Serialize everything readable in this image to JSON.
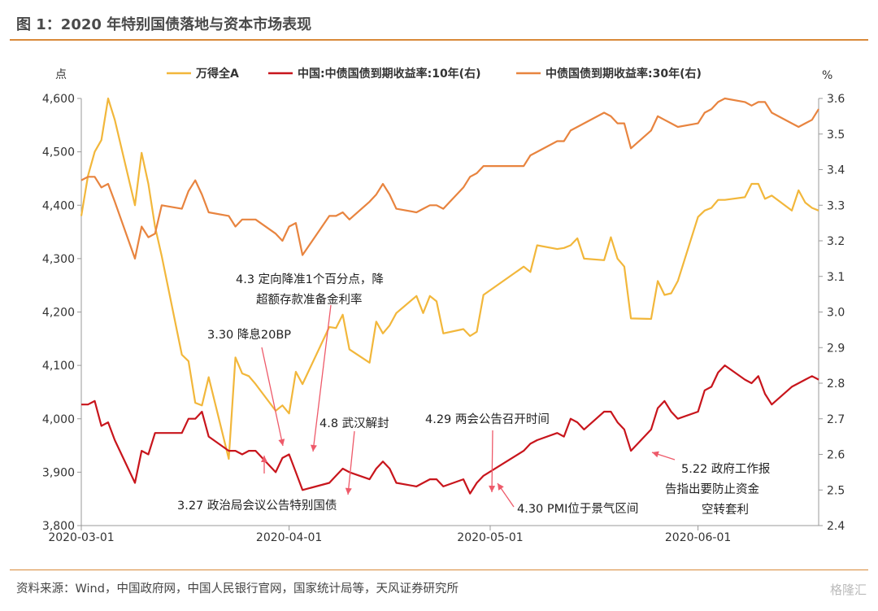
{
  "header": {
    "title": "图 1：2020 年特别国债落地与资本市场表现"
  },
  "footer": {
    "source": "资料来源：Wind，中国政府网，中国人民银行官网，国家统计局等，天风证券研究所",
    "watermark": "格隆汇"
  },
  "colors": {
    "wind": "#f2b73b",
    "bond10": "#c8151c",
    "bond30": "#e8843f",
    "annotation": "#ee5a6a",
    "rule": "#d98a3a"
  },
  "chart_data": {
    "type": "line",
    "ylabel_left": "点",
    "ylabel_right": "%",
    "ylim_left": [
      3800,
      4600
    ],
    "ylim_right": [
      2.4,
      3.6
    ],
    "yticks_left": [
      "3,800",
      "3,900",
      "4,000",
      "4,100",
      "4,200",
      "4,300",
      "4,400",
      "4,500",
      "4,600"
    ],
    "yticks_right": [
      "2.4",
      "2.5",
      "2.6",
      "2.7",
      "2.8",
      "2.9",
      "3.0",
      "3.1",
      "3.2",
      "3.3",
      "3.4",
      "3.5",
      "3.6"
    ],
    "xticks": [
      "2020-03-01",
      "2020-04-01",
      "2020-05-01",
      "2020-06-01"
    ],
    "series": [
      {
        "name": "万得全A",
        "axis": "left",
        "x": [
          "2020-03-01",
          "2020-03-02",
          "2020-03-03",
          "2020-03-04",
          "2020-03-05",
          "2020-03-06",
          "2020-03-09",
          "2020-03-10",
          "2020-03-11",
          "2020-03-12",
          "2020-03-13",
          "2020-03-16",
          "2020-03-17",
          "2020-03-18",
          "2020-03-19",
          "2020-03-20",
          "2020-03-23",
          "2020-03-24",
          "2020-03-25",
          "2020-03-26",
          "2020-03-27",
          "2020-03-30",
          "2020-03-31",
          "2020-04-01",
          "2020-04-02",
          "2020-04-03",
          "2020-04-07",
          "2020-04-08",
          "2020-04-09",
          "2020-04-10",
          "2020-04-13",
          "2020-04-14",
          "2020-04-15",
          "2020-04-16",
          "2020-04-17",
          "2020-04-20",
          "2020-04-21",
          "2020-04-22",
          "2020-04-23",
          "2020-04-24",
          "2020-04-27",
          "2020-04-28",
          "2020-04-29",
          "2020-04-30",
          "2020-05-06",
          "2020-05-07",
          "2020-05-08",
          "2020-05-11",
          "2020-05-12",
          "2020-05-13",
          "2020-05-14",
          "2020-05-15",
          "2020-05-18",
          "2020-05-19",
          "2020-05-20",
          "2020-05-21",
          "2020-05-22",
          "2020-05-25",
          "2020-05-26",
          "2020-05-27",
          "2020-05-28",
          "2020-05-29",
          "2020-06-01",
          "2020-06-02",
          "2020-06-03",
          "2020-06-04",
          "2020-06-05",
          "2020-06-08",
          "2020-06-09",
          "2020-06-10",
          "2020-06-11",
          "2020-06-12",
          "2020-06-15",
          "2020-06-16",
          "2020-06-17",
          "2020-06-18",
          "2020-06-19"
        ],
        "values": [
          4380,
          4455,
          4500,
          4522,
          4600,
          4560,
          4400,
          4498,
          4440,
          4360,
          4305,
          4120,
          4108,
          4030,
          4025,
          4078,
          3925,
          4115,
          4085,
          4080,
          4065,
          4015,
          4025,
          4010,
          4088,
          4065,
          4172,
          4170,
          4195,
          4130,
          4105,
          4182,
          4160,
          4175,
          4198,
          4230,
          4198,
          4230,
          4220,
          4160,
          4168,
          4155,
          4163,
          4232,
          4285,
          4275,
          4325,
          4318,
          4320,
          4325,
          4338,
          4300,
          4297,
          4340,
          4300,
          4285,
          4188,
          4187,
          4258,
          4232,
          4235,
          4258,
          4378,
          4390,
          4395,
          4410,
          4410,
          4415,
          4440,
          4440,
          4412,
          4418,
          4390,
          4428,
          4405,
          4395,
          4390
        ]
      },
      {
        "name": "中国:中债国债到期收益率:10年(右)",
        "axis": "right",
        "x": [
          "2020-03-01",
          "2020-03-02",
          "2020-03-03",
          "2020-03-04",
          "2020-03-05",
          "2020-03-06",
          "2020-03-09",
          "2020-03-10",
          "2020-03-11",
          "2020-03-12",
          "2020-03-13",
          "2020-03-16",
          "2020-03-17",
          "2020-03-18",
          "2020-03-19",
          "2020-03-20",
          "2020-03-23",
          "2020-03-24",
          "2020-03-25",
          "2020-03-26",
          "2020-03-27",
          "2020-03-30",
          "2020-03-31",
          "2020-04-01",
          "2020-04-02",
          "2020-04-03",
          "2020-04-07",
          "2020-04-08",
          "2020-04-09",
          "2020-04-10",
          "2020-04-13",
          "2020-04-14",
          "2020-04-15",
          "2020-04-16",
          "2020-04-17",
          "2020-04-20",
          "2020-04-21",
          "2020-04-22",
          "2020-04-23",
          "2020-04-24",
          "2020-04-27",
          "2020-04-28",
          "2020-04-29",
          "2020-04-30",
          "2020-05-06",
          "2020-05-07",
          "2020-05-08",
          "2020-05-11",
          "2020-05-12",
          "2020-05-13",
          "2020-05-14",
          "2020-05-15",
          "2020-05-18",
          "2020-05-19",
          "2020-05-20",
          "2020-05-21",
          "2020-05-22",
          "2020-05-25",
          "2020-05-26",
          "2020-05-27",
          "2020-05-28",
          "2020-05-29",
          "2020-06-01",
          "2020-06-02",
          "2020-06-03",
          "2020-06-04",
          "2020-06-05",
          "2020-06-08",
          "2020-06-09",
          "2020-06-10",
          "2020-06-11",
          "2020-06-12",
          "2020-06-15",
          "2020-06-16",
          "2020-06-17",
          "2020-06-18",
          "2020-06-19"
        ],
        "values": [
          2.74,
          2.74,
          2.75,
          2.68,
          2.69,
          2.64,
          2.52,
          2.61,
          2.6,
          2.66,
          2.66,
          2.66,
          2.7,
          2.7,
          2.72,
          2.65,
          2.61,
          2.61,
          2.6,
          2.61,
          2.61,
          2.55,
          2.59,
          2.6,
          2.55,
          2.5,
          2.52,
          2.54,
          2.56,
          2.55,
          2.53,
          2.56,
          2.58,
          2.56,
          2.52,
          2.51,
          2.52,
          2.53,
          2.53,
          2.51,
          2.53,
          2.49,
          2.52,
          2.54,
          2.61,
          2.63,
          2.64,
          2.66,
          2.65,
          2.7,
          2.69,
          2.67,
          2.72,
          2.72,
          2.69,
          2.67,
          2.61,
          2.67,
          2.73,
          2.75,
          2.72,
          2.7,
          2.72,
          2.78,
          2.79,
          2.83,
          2.85,
          2.81,
          2.8,
          2.82,
          2.77,
          2.74,
          2.79,
          2.8,
          2.81,
          2.82,
          2.81
        ]
      },
      {
        "name": "中债国债到期收益率:30年(右)",
        "axis": "right",
        "x": [
          "2020-03-01",
          "2020-03-02",
          "2020-03-03",
          "2020-03-04",
          "2020-03-05",
          "2020-03-06",
          "2020-03-09",
          "2020-03-10",
          "2020-03-11",
          "2020-03-12",
          "2020-03-13",
          "2020-03-16",
          "2020-03-17",
          "2020-03-18",
          "2020-03-19",
          "2020-03-20",
          "2020-03-23",
          "2020-03-24",
          "2020-03-25",
          "2020-03-26",
          "2020-03-27",
          "2020-03-30",
          "2020-03-31",
          "2020-04-01",
          "2020-04-02",
          "2020-04-03",
          "2020-04-07",
          "2020-04-08",
          "2020-04-09",
          "2020-04-10",
          "2020-04-13",
          "2020-04-14",
          "2020-04-15",
          "2020-04-16",
          "2020-04-17",
          "2020-04-20",
          "2020-04-21",
          "2020-04-22",
          "2020-04-23",
          "2020-04-24",
          "2020-04-27",
          "2020-04-28",
          "2020-04-29",
          "2020-04-30",
          "2020-05-06",
          "2020-05-07",
          "2020-05-08",
          "2020-05-11",
          "2020-05-12",
          "2020-05-13",
          "2020-05-14",
          "2020-05-15",
          "2020-05-18",
          "2020-05-19",
          "2020-05-20",
          "2020-05-21",
          "2020-05-22",
          "2020-05-25",
          "2020-05-26",
          "2020-05-27",
          "2020-05-28",
          "2020-05-29",
          "2020-06-01",
          "2020-06-02",
          "2020-06-03",
          "2020-06-04",
          "2020-06-05",
          "2020-06-08",
          "2020-06-09",
          "2020-06-10",
          "2020-06-11",
          "2020-06-12",
          "2020-06-15",
          "2020-06-16",
          "2020-06-17",
          "2020-06-18",
          "2020-06-19"
        ],
        "values": [
          3.37,
          3.38,
          3.38,
          3.35,
          3.36,
          3.31,
          3.15,
          3.24,
          3.21,
          3.22,
          3.3,
          3.29,
          3.34,
          3.37,
          3.33,
          3.28,
          3.27,
          3.24,
          3.26,
          3.26,
          3.26,
          3.22,
          3.2,
          3.24,
          3.25,
          3.16,
          3.27,
          3.27,
          3.28,
          3.26,
          3.31,
          3.33,
          3.36,
          3.33,
          3.29,
          3.28,
          3.29,
          3.3,
          3.3,
          3.29,
          3.35,
          3.38,
          3.39,
          3.41,
          3.41,
          3.44,
          3.45,
          3.48,
          3.48,
          3.51,
          3.52,
          3.53,
          3.56,
          3.55,
          3.53,
          3.53,
          3.46,
          3.51,
          3.55,
          3.54,
          3.53,
          3.52,
          3.53,
          3.56,
          3.57,
          3.59,
          3.6,
          3.59,
          3.58,
          3.59,
          3.59,
          3.56,
          3.53,
          3.52,
          3.53,
          3.54,
          3.57
        ]
      }
    ],
    "annotations": [
      {
        "text": [
          "4.3 定向降准1个百分点，降",
          "超额存款准备金利率"
        ]
      },
      {
        "text": [
          "3.30 降息20BP"
        ]
      },
      {
        "text": [
          "4.8 武汉解封"
        ]
      },
      {
        "text": [
          "4.29 两会公告召开时间"
        ]
      },
      {
        "text": [
          "3.27 政治局会议公告特别国债"
        ]
      },
      {
        "text": [
          "4.30 PMI位于景气区间"
        ]
      },
      {
        "text": [
          "5.22 政府工作报",
          "告指出要防止资金",
          "空转套利"
        ]
      }
    ]
  }
}
